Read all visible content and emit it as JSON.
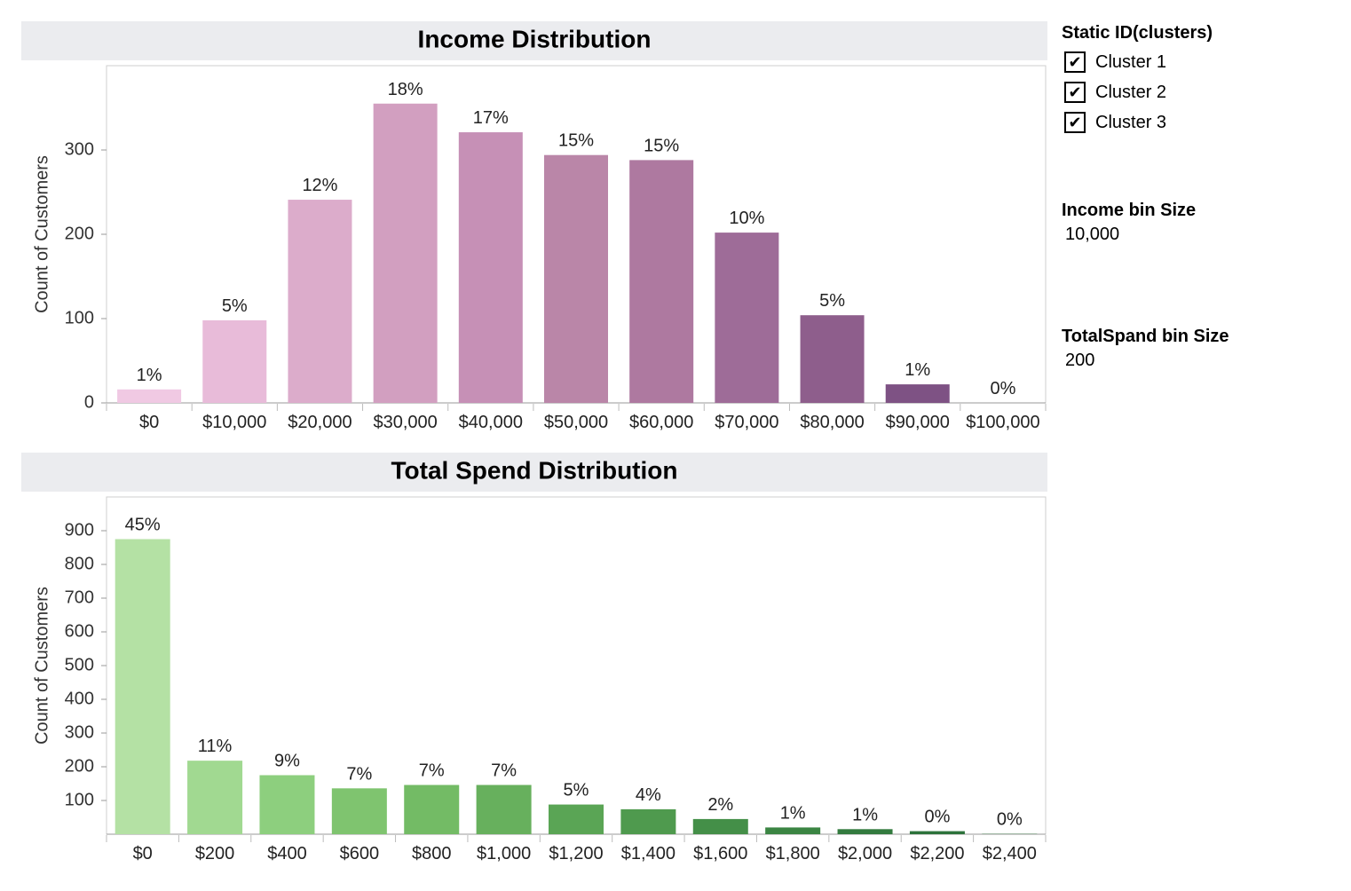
{
  "chart_data": [
    {
      "type": "bar",
      "title": "Income Distribution",
      "ylabel": "Count of Customers",
      "xlabel": "",
      "categories": [
        "$0",
        "$10,000",
        "$20,000",
        "$30,000",
        "$40,000",
        "$50,000",
        "$60,000",
        "$70,000",
        "$80,000",
        "$90,000",
        "$100,000"
      ],
      "values": [
        16,
        98,
        241,
        355,
        321,
        294,
        288,
        202,
        104,
        22,
        0
      ],
      "labels": [
        "1%",
        "5%",
        "12%",
        "18%",
        "17%",
        "15%",
        "15%",
        "10%",
        "5%",
        "1%",
        "0%"
      ],
      "colors": [
        "#f0c9e3",
        "#e8bbd9",
        "#dcaccb",
        "#d29fc0",
        "#c690b6",
        "#ba86a8",
        "#ae79a0",
        "#9e6c98",
        "#8e5e8c",
        "#7e5284",
        "#745080"
      ],
      "yticks": [
        0,
        100,
        200,
        300
      ],
      "ylim": [
        0,
        400
      ],
      "grid": false
    },
    {
      "type": "bar",
      "title": "Total Spend Distribution",
      "ylabel": "Count of Customers",
      "xlabel": "",
      "categories": [
        "$0",
        "$200",
        "$400",
        "$600",
        "$800",
        "$1,000",
        "$1,200",
        "$1,400",
        "$1,600",
        "$1,800",
        "$2,000",
        "$2,200",
        "$2,400"
      ],
      "values": [
        875,
        218,
        175,
        136,
        146,
        146,
        88,
        74,
        45,
        20,
        15,
        9,
        1
      ],
      "labels": [
        "45%",
        "11%",
        "9%",
        "7%",
        "7%",
        "7%",
        "5%",
        "4%",
        "2%",
        "1%",
        "1%",
        "0%",
        "0%"
      ],
      "colors": [
        "#b4e1a4",
        "#a1d991",
        "#8dcf7e",
        "#7fc46f",
        "#73bb65",
        "#67b05d",
        "#5aa555",
        "#4f9a4e",
        "#448f48",
        "#3b8543",
        "#337b3f",
        "#2d723b",
        "#296a37"
      ],
      "yticks": [
        100,
        200,
        300,
        400,
        500,
        600,
        700,
        800,
        900
      ],
      "ylim": [
        0,
        1000
      ],
      "grid": false
    }
  ],
  "legend": {
    "title": "Static ID(clusters)",
    "check_glyph": "✔",
    "items": [
      {
        "label": "Cluster 1",
        "checked": true
      },
      {
        "label": "Cluster 2",
        "checked": true
      },
      {
        "label": "Cluster 3",
        "checked": true
      }
    ]
  },
  "params": {
    "income_bin": {
      "title": "Income bin Size",
      "value": "10,000"
    },
    "spend_bin": {
      "title": "TotalSpand bin Size",
      "value": "200"
    }
  }
}
